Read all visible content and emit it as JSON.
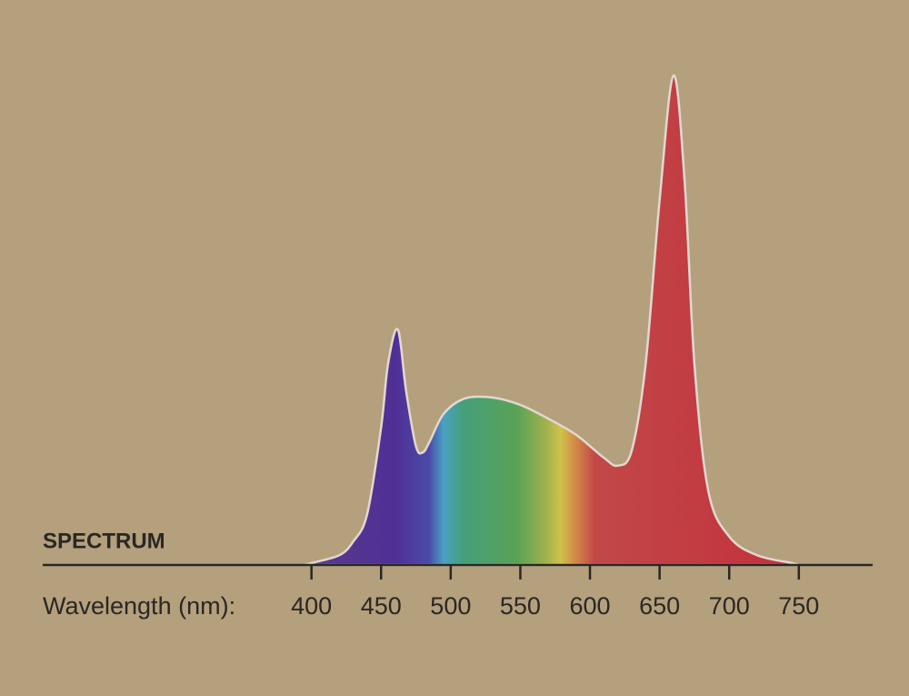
{
  "chart_data": {
    "type": "area",
    "title": "SPECTRUM",
    "x_label": "Wavelength (nm):",
    "x": [
      395,
      400,
      420,
      430,
      440,
      450,
      455,
      462,
      468,
      475,
      480,
      485,
      495,
      510,
      530,
      550,
      570,
      590,
      610,
      620,
      630,
      640,
      650,
      660,
      668,
      675,
      685,
      700,
      720,
      745,
      750
    ],
    "values": [
      0,
      0.4,
      2,
      4.8,
      10.4,
      28.1,
      41.1,
      48.1,
      35.5,
      24.3,
      23,
      25.3,
      30.9,
      34,
      34.2,
      32.7,
      29.9,
      26.6,
      21.9,
      20.3,
      23.4,
      41.1,
      74.5,
      100,
      78.3,
      41.1,
      15.1,
      5.8,
      2,
      0.4,
      0
    ],
    "xlim": [
      207,
      803
    ],
    "xticks": [
      400,
      450,
      500,
      550,
      600,
      650,
      700,
      750
    ],
    "ylim": [
      0,
      100
    ]
  }
}
